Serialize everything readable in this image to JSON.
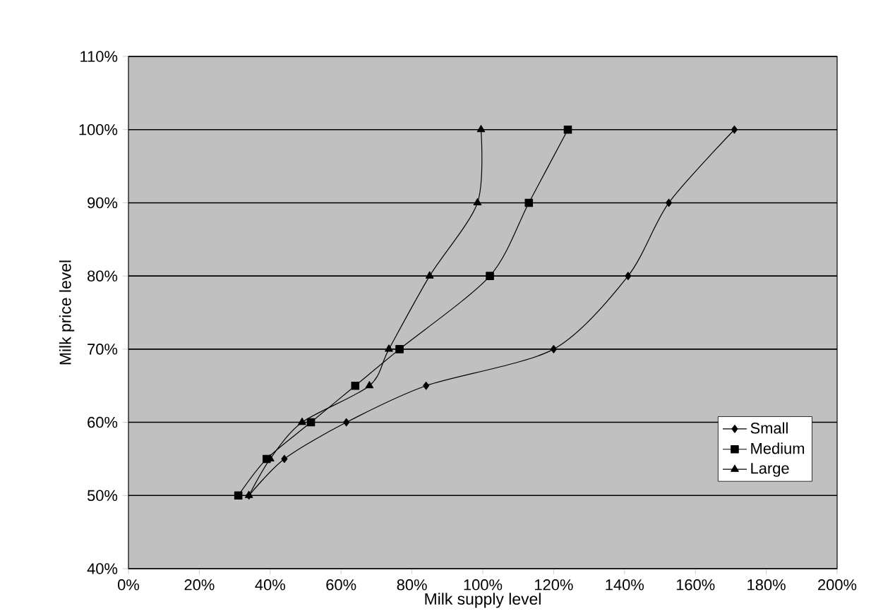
{
  "chart_data": {
    "type": "line",
    "xlabel": "Milk supply level",
    "ylabel": "Milk price level",
    "xlim": [
      0,
      200
    ],
    "ylim": [
      40,
      110
    ],
    "xticks": [
      {
        "value": 0,
        "label": "0%"
      },
      {
        "value": 20,
        "label": "20%"
      },
      {
        "value": 40,
        "label": "40%"
      },
      {
        "value": 60,
        "label": "60%"
      },
      {
        "value": 80,
        "label": "80%"
      },
      {
        "value": 100,
        "label": "100%"
      },
      {
        "value": 120,
        "label": "120%"
      },
      {
        "value": 140,
        "label": "140%"
      },
      {
        "value": 160,
        "label": "160%"
      },
      {
        "value": 180,
        "label": "180%"
      },
      {
        "value": 200,
        "label": "200%"
      }
    ],
    "yticks": [
      {
        "value": 40,
        "label": "40%"
      },
      {
        "value": 50,
        "label": "50%"
      },
      {
        "value": 60,
        "label": "60%"
      },
      {
        "value": 70,
        "label": "70%"
      },
      {
        "value": 80,
        "label": "80%"
      },
      {
        "value": 90,
        "label": "90%"
      },
      {
        "value": 100,
        "label": "100%"
      },
      {
        "value": 110,
        "label": "110%"
      }
    ],
    "grid": "y",
    "legend": "bottom right",
    "line_style": "solid",
    "series": [
      {
        "name": "Small",
        "color": "#000000",
        "marker": "diamond",
        "x": [
          34,
          44,
          61.5,
          84,
          120,
          141,
          152.5,
          171
        ],
        "values": [
          50,
          55,
          60,
          65,
          70,
          80,
          90,
          100
        ]
      },
      {
        "name": "Medium",
        "color": "#000000",
        "marker": "square",
        "x": [
          31,
          39,
          51.5,
          64,
          76.5,
          102,
          113,
          124
        ],
        "values": [
          50,
          55,
          60,
          65,
          70,
          80,
          90,
          100
        ]
      },
      {
        "name": "Large",
        "color": "#000000",
        "marker": "triangle",
        "x": [
          34,
          40,
          49,
          68,
          73.5,
          85,
          98.5,
          99.5
        ],
        "values": [
          50,
          55,
          60,
          65,
          70,
          80,
          90,
          100
        ]
      }
    ]
  }
}
